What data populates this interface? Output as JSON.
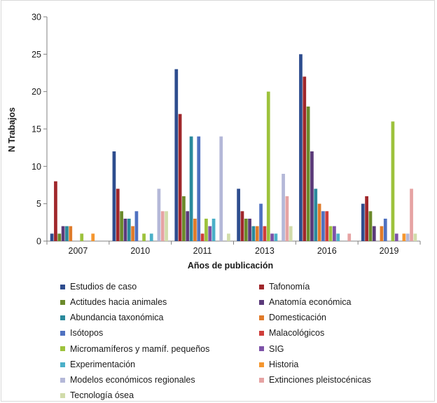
{
  "chart_data": {
    "type": "bar",
    "title": "",
    "xlabel": "Años de publicación",
    "ylabel": "N Trabajos",
    "ylim": [
      0,
      30
    ],
    "yticks": [
      0,
      5,
      10,
      15,
      20,
      25,
      30
    ],
    "grid": false,
    "legend_position": "bottom",
    "categories": [
      "2007",
      "2010",
      "2011",
      "2013",
      "2016",
      "2019"
    ],
    "series": [
      {
        "name": "Estudios de caso",
        "color": "#2e4d8e",
        "values": [
          1,
          12,
          23,
          7,
          25,
          5
        ]
      },
      {
        "name": "Tafonomía",
        "color": "#a0272b",
        "values": [
          8,
          7,
          17,
          4,
          22,
          6
        ]
      },
      {
        "name": "Actitudes hacia animales",
        "color": "#6b8a2b",
        "values": [
          1,
          4,
          6,
          3,
          18,
          4
        ]
      },
      {
        "name": "Anatomía económica",
        "color": "#5b3a7a",
        "values": [
          2,
          3,
          4,
          3,
          12,
          2
        ]
      },
      {
        "name": "Abundancia taxonómica",
        "color": "#2b8a9c",
        "values": [
          2,
          3,
          14,
          2,
          7,
          0
        ]
      },
      {
        "name": "Domesticación",
        "color": "#e07b2a",
        "values": [
          2,
          2,
          3,
          2,
          5,
          2
        ]
      },
      {
        "name": "Isótopos",
        "color": "#4f71c0",
        "values": [
          0,
          4,
          14,
          5,
          4,
          3
        ]
      },
      {
        "name": "Malacológicos",
        "color": "#cf3e3a",
        "values": [
          0,
          0,
          1,
          2,
          4,
          0
        ]
      },
      {
        "name": "Micromamíferos y mamíf. pequeños",
        "color": "#9dc23c",
        "values": [
          1,
          1,
          3,
          20,
          2,
          16
        ]
      },
      {
        "name": "SIG",
        "color": "#7d52a8",
        "values": [
          0,
          0,
          2,
          1,
          2,
          1
        ]
      },
      {
        "name": "Experimentación",
        "color": "#4bb0c8",
        "values": [
          0,
          1,
          3,
          1,
          1,
          0
        ]
      },
      {
        "name": "Historia",
        "color": "#f5962f",
        "values": [
          1,
          0,
          0,
          0,
          0,
          1
        ]
      },
      {
        "name": "Modelos económicos regionales",
        "color": "#b4b8d8",
        "values": [
          0,
          7,
          14,
          9,
          0,
          1
        ]
      },
      {
        "name": "Extinciones pleistocénicas",
        "color": "#e6a3a3",
        "values": [
          0,
          4,
          0,
          6,
          1,
          7
        ]
      },
      {
        "name": "Tecnología ósea",
        "color": "#d1dcaa",
        "values": [
          0,
          4,
          1,
          2,
          0,
          1
        ]
      }
    ]
  }
}
